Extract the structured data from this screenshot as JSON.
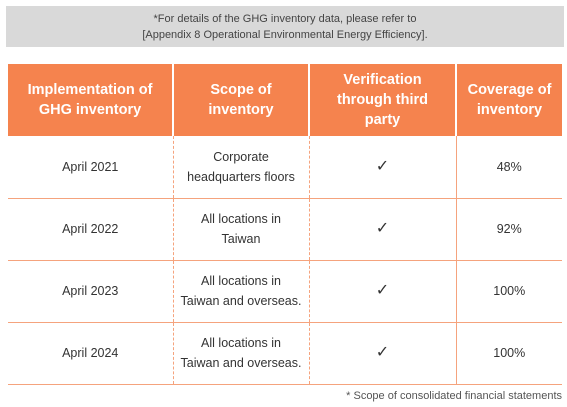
{
  "note": {
    "line1": "*For details of the GHG inventory data, please refer to",
    "line2": "[Appendix 8 Operational Environmental Energy Efficiency]."
  },
  "table": {
    "headers": [
      [
        "Implementation of",
        "GHG inventory"
      ],
      [
        "Scope of",
        "inventory"
      ],
      [
        "Verification",
        "through third",
        "party"
      ],
      [
        "Coverage of",
        "inventory"
      ]
    ],
    "rows": [
      {
        "date": "April 2021",
        "scope": [
          "Corporate",
          "headquarters floors"
        ],
        "verified": "✓",
        "coverage": "48%"
      },
      {
        "date": "April 2022",
        "scope": [
          "All locations in",
          "Taiwan"
        ],
        "verified": "✓",
        "coverage": "92%"
      },
      {
        "date": "April 2023",
        "scope": [
          "All locations in",
          "Taiwan and overseas."
        ],
        "verified": "✓",
        "coverage": "100%"
      },
      {
        "date": "April 2024",
        "scope": [
          "All locations in",
          "Taiwan and overseas."
        ],
        "verified": "✓",
        "coverage": "100%"
      }
    ]
  },
  "footnote": "* Scope of consolidated financial statements",
  "colors": {
    "header_bg": "#f5834e",
    "note_bg": "#d9d9d9",
    "rule": "#f5a37d"
  }
}
